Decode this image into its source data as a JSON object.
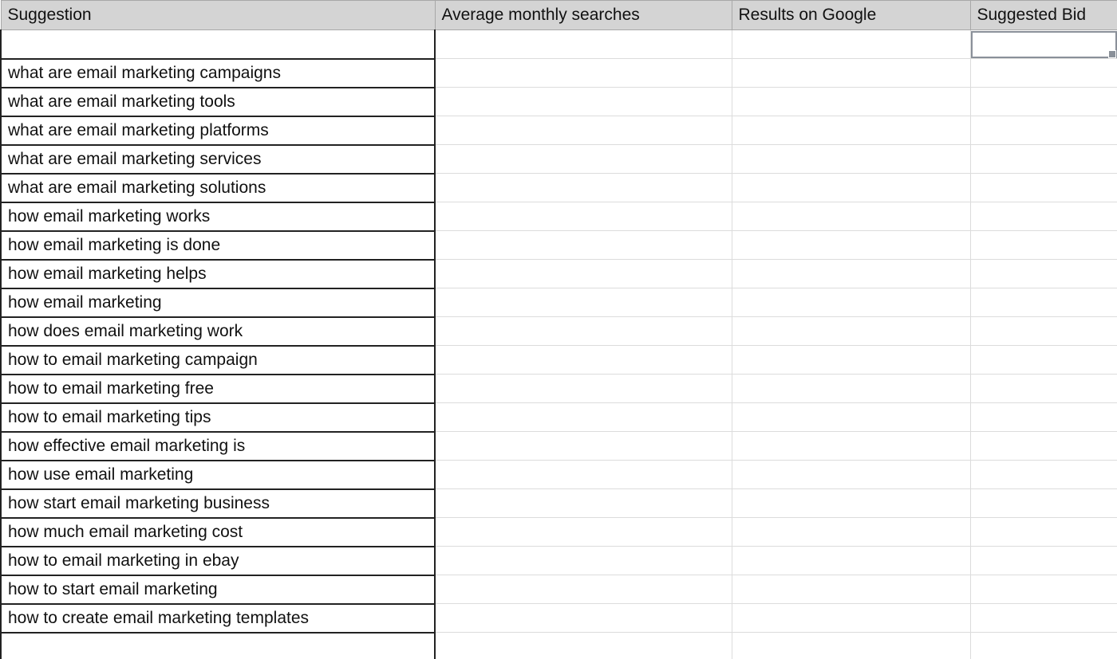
{
  "columns": [
    {
      "label": "Suggestion"
    },
    {
      "label": "Average monthly searches"
    },
    {
      "label": "Results on Google"
    },
    {
      "label": "Suggested Bid"
    }
  ],
  "rows": [
    {
      "suggestion": "",
      "searches": "",
      "results": "",
      "bid": ""
    },
    {
      "suggestion": "what are email marketing campaigns",
      "searches": "",
      "results": "",
      "bid": ""
    },
    {
      "suggestion": "what are email marketing tools",
      "searches": "",
      "results": "",
      "bid": ""
    },
    {
      "suggestion": "what are email marketing platforms",
      "searches": "",
      "results": "",
      "bid": ""
    },
    {
      "suggestion": "what are email marketing services",
      "searches": "",
      "results": "",
      "bid": ""
    },
    {
      "suggestion": "what are email marketing solutions",
      "searches": "",
      "results": "",
      "bid": ""
    },
    {
      "suggestion": "how email marketing works",
      "searches": "",
      "results": "",
      "bid": ""
    },
    {
      "suggestion": "how email marketing is done",
      "searches": "",
      "results": "",
      "bid": ""
    },
    {
      "suggestion": "how email marketing helps",
      "searches": "",
      "results": "",
      "bid": ""
    },
    {
      "suggestion": "how email marketing",
      "searches": "",
      "results": "",
      "bid": ""
    },
    {
      "suggestion": "how does email marketing work",
      "searches": "",
      "results": "",
      "bid": ""
    },
    {
      "suggestion": "how to email marketing campaign",
      "searches": "",
      "results": "",
      "bid": ""
    },
    {
      "suggestion": "how to email marketing free",
      "searches": "",
      "results": "",
      "bid": ""
    },
    {
      "suggestion": "how to email marketing tips",
      "searches": "",
      "results": "",
      "bid": ""
    },
    {
      "suggestion": "how effective email marketing is",
      "searches": "",
      "results": "",
      "bid": ""
    },
    {
      "suggestion": "how use email marketing",
      "searches": "",
      "results": "",
      "bid": ""
    },
    {
      "suggestion": "how start email marketing business",
      "searches": "",
      "results": "",
      "bid": ""
    },
    {
      "suggestion": "how much email marketing cost",
      "searches": "",
      "results": "",
      "bid": ""
    },
    {
      "suggestion": "how to email marketing in ebay",
      "searches": "",
      "results": "",
      "bid": ""
    },
    {
      "suggestion": "how to start email marketing",
      "searches": "",
      "results": "",
      "bid": ""
    },
    {
      "suggestion": "how to create email marketing templates",
      "searches": "",
      "results": "",
      "bid": ""
    },
    {
      "suggestion": "",
      "searches": "",
      "results": "",
      "bid": ""
    }
  ],
  "selection": {
    "row": 0,
    "column": "bid"
  }
}
